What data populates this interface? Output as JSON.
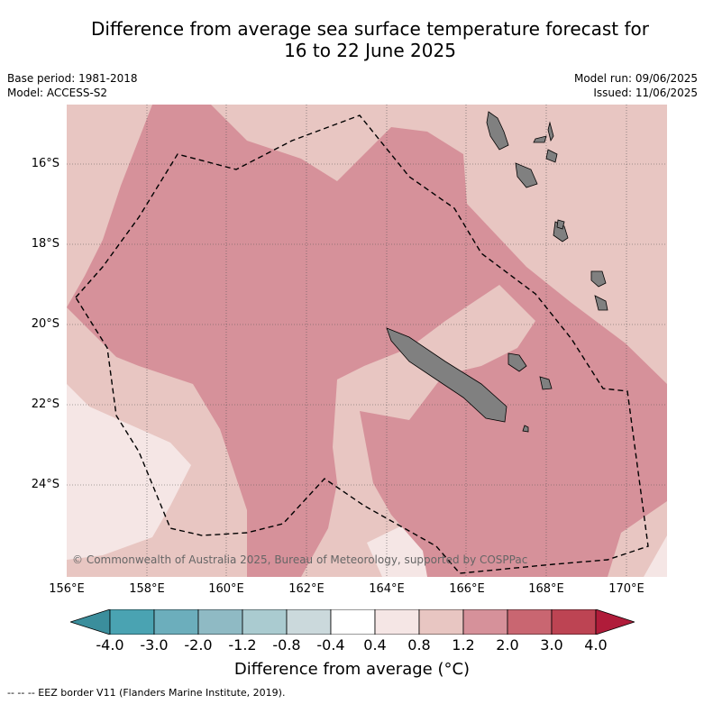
{
  "title_line1": "Difference from average sea surface temperature forecast for",
  "title_line2": "16 to 22 June 2025",
  "base_period": "Base period: 1981-2018",
  "model": "Model: ACCESS-S2",
  "model_run": "Model run: 09/06/2025",
  "issued": "Issued: 11/06/2025",
  "copyright": "© Commonwealth of Australia 2025, Bureau of Meteorology, supported by COSPPac",
  "lat_labels": [
    "16°S",
    "18°S",
    "20°S",
    "22°S",
    "24°S"
  ],
  "lon_labels": [
    "156°E",
    "158°E",
    "160°E",
    "162°E",
    "164°E",
    "166°E",
    "168°E",
    "170°E"
  ],
  "colorbar": {
    "ticks": [
      "-4.0",
      "-3.0",
      "-2.0",
      "-1.2",
      "-0.8",
      "-0.4",
      "0.4",
      "0.8",
      "1.2",
      "2.0",
      "3.0",
      "4.0"
    ],
    "colors": [
      "#3b8e9c",
      "#4aa3b2",
      "#6caebc",
      "#8fbac4",
      "#aacbd0",
      "#cbd9dc",
      "#ffffff",
      "#f5e6e5",
      "#e8c6c2",
      "#d6919a",
      "#c96671",
      "#bd4453",
      "#b01c3a"
    ],
    "label": "Difference from average (°C)"
  },
  "legend_text": "-- -- -- EEZ border V11 (Flanders Marine Institute, 2019).",
  "regions": {
    "background": "#e8c6c2",
    "main_anomaly": "#d6919a",
    "low_anomaly": "#f5e6e5",
    "land": "#808080"
  }
}
